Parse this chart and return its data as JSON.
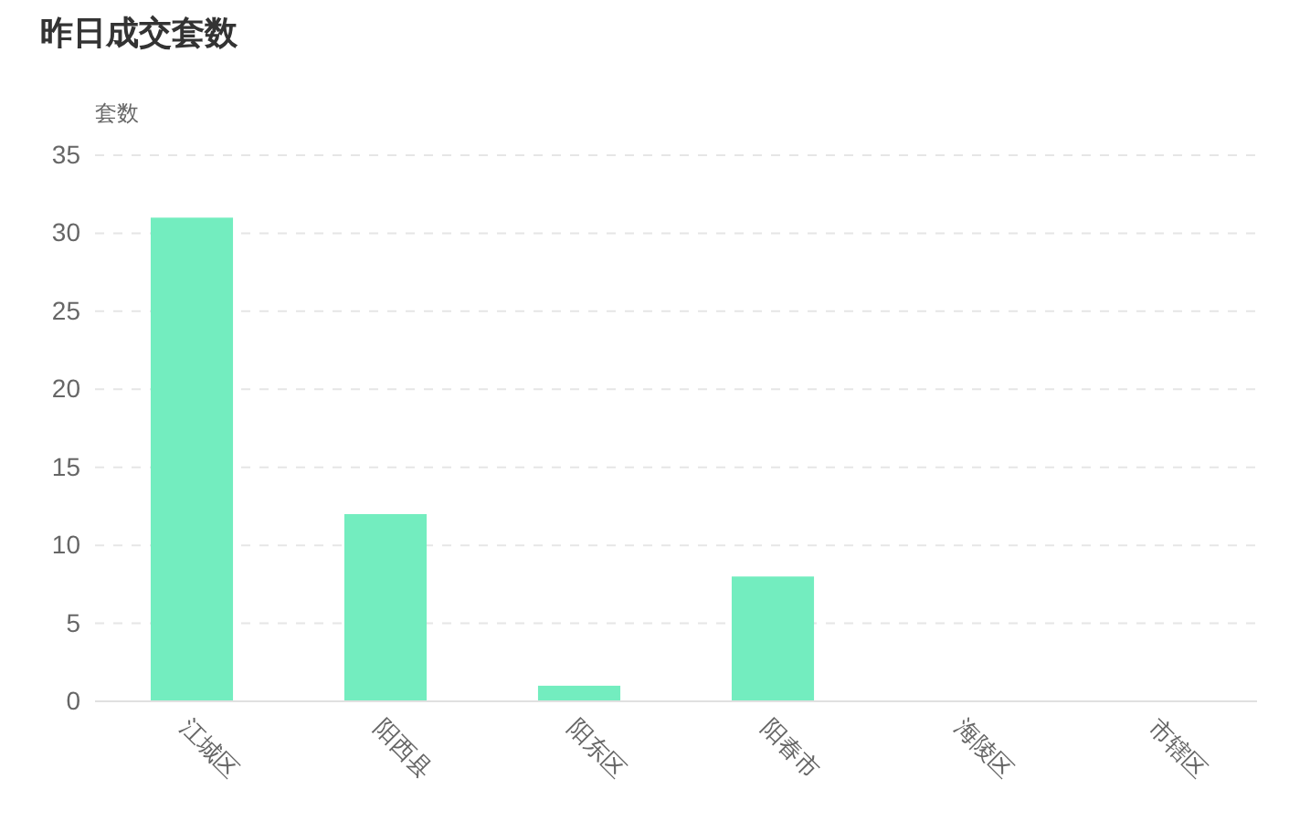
{
  "chart_data": {
    "type": "bar",
    "title": "昨日成交套数",
    "ylabel": "套数",
    "categories": [
      "江城区",
      "阳西县",
      "阳东区",
      "阳春市",
      "海陵区",
      "市辖区"
    ],
    "values": [
      31,
      12,
      1,
      8,
      0,
      0
    ],
    "color": "#73edbf",
    "ylim": [
      0,
      35
    ],
    "yticks": [
      0,
      5,
      10,
      15,
      20,
      25,
      30,
      35
    ],
    "grid": "y"
  }
}
